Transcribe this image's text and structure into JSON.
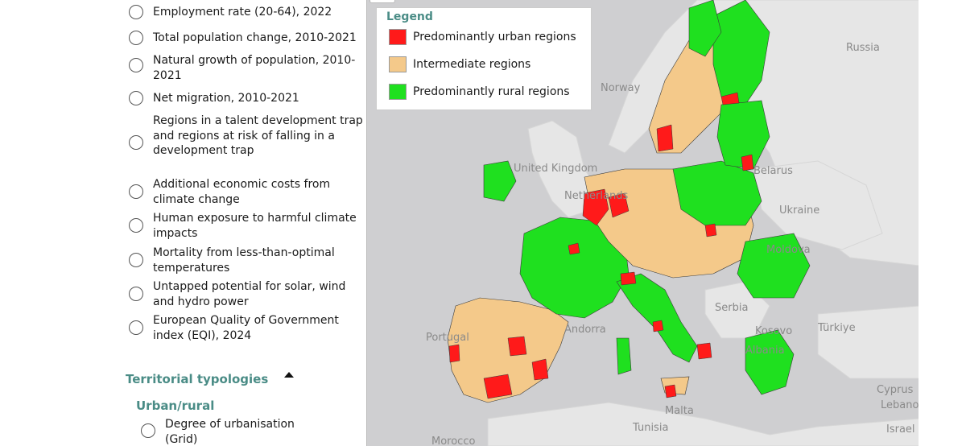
{
  "sidebar": {
    "options": [
      {
        "label": "Employment rate (20-64), 2022"
      },
      {
        "label": "Total population change, 2010-2021"
      },
      {
        "label": "Natural growth of population, 2010-2021"
      },
      {
        "label": "Net migration, 2010-2021"
      },
      {
        "label": "Regions in a talent development trap and regions at risk of falling in a development trap"
      },
      {
        "label": "Additional economic costs from climate change"
      },
      {
        "label": "Human exposure to harmful climate impacts"
      },
      {
        "label": "Mortality from less-than-optimal temperatures"
      },
      {
        "label": "Untapped potential for solar, wind and hydro power"
      },
      {
        "label": "European Quality of Government index (EQI), 2024"
      }
    ],
    "section_title": "Territorial typologies",
    "subsection_title": "Urban/rural",
    "sub_options": [
      {
        "label": "Degree of urbanisation (Grid)"
      }
    ]
  },
  "legend": {
    "title": "Legend",
    "items": [
      {
        "label": "Predominantly urban regions",
        "color": "#ff1a1a"
      },
      {
        "label": "Intermediate regions",
        "color": "#f4c98a"
      },
      {
        "label": "Predominantly rural regions",
        "color": "#1fe01f"
      }
    ]
  },
  "map_labels": {
    "russia": "Russia",
    "norway": "Norway",
    "united_kingdom": "United Kingdom",
    "belarus": "Belarus",
    "ukraine": "Ukraine",
    "moldova": "Moldova",
    "serbia": "Serbia",
    "turkiye": "Türkiye",
    "portugal": "Portugal",
    "andorra": "Andorra",
    "tunisia": "Tunisia",
    "morocco": "Morocco",
    "malta": "Malta",
    "cyprus": "Cyprus",
    "lebanon": "Lebanon",
    "israel": "Israel",
    "kosovo": "Kosovo",
    "albania": "Albania",
    "netherlands": "Netherlands"
  },
  "colors": {
    "urban": "#ff1a1a",
    "intermediate": "#f4c98a",
    "rural": "#1fe01f",
    "sea": "#cfcfd1",
    "land_outside": "#e6e6e6",
    "accent": "#4a8c86"
  }
}
